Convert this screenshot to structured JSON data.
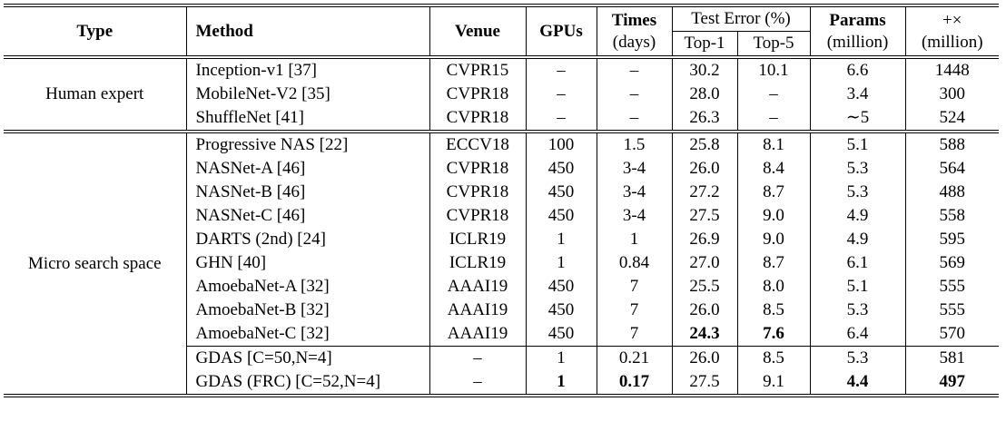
{
  "table": {
    "header": {
      "type": "Type",
      "method": "Method",
      "venue": "Venue",
      "gpus": "GPUs",
      "times": "Times",
      "times_unit": "(days)",
      "test_error": "Test Error (%)",
      "top1": "Top-1",
      "top5": "Top-5",
      "params": "Params",
      "params_unit": "(million)",
      "flops": "+×",
      "flops_unit": "(million)"
    },
    "groups": [
      {
        "type": "Human expert",
        "blocks": [
          [
            [
              "Inception-v1 [37]",
              "CVPR15",
              "–",
              "–",
              "30.2",
              "10.1",
              "6.6",
              "1448"
            ],
            [
              "MobileNet-V2 [35]",
              "CVPR18",
              "–",
              "–",
              "28.0",
              "–",
              "3.4",
              "300"
            ],
            [
              "ShuffleNet [41]",
              "CVPR18",
              "–",
              "–",
              "26.3",
              "–",
              "∼5",
              "524"
            ]
          ]
        ]
      },
      {
        "type": "Micro search space",
        "blocks": [
          [
            [
              "Progressive NAS [22]",
              "ECCV18",
              "100",
              "1.5",
              "25.8",
              "8.1",
              "5.1",
              "588"
            ],
            [
              "NASNet-A [46]",
              "CVPR18",
              "450",
              "3-4",
              "26.0",
              "8.4",
              "5.3",
              "564"
            ],
            [
              "NASNet-B [46]",
              "CVPR18",
              "450",
              "3-4",
              "27.2",
              "8.7",
              "5.3",
              "488"
            ],
            [
              "NASNet-C [46]",
              "CVPR18",
              "450",
              "3-4",
              "27.5",
              "9.0",
              "4.9",
              "558"
            ],
            [
              "DARTS (2nd) [24]",
              "ICLR19",
              "1",
              "1",
              "26.9",
              "9.0",
              "4.9",
              "595"
            ],
            [
              "GHN [40]",
              "ICLR19",
              "1",
              "0.84",
              "27.0",
              "8.7",
              "6.1",
              "569"
            ],
            [
              "AmoebaNet-A [32]",
              "AAAI19",
              "450",
              "7",
              "25.5",
              "8.0",
              "5.1",
              "555"
            ],
            [
              "AmoebaNet-B [32]",
              "AAAI19",
              "450",
              "7",
              "26.0",
              "8.5",
              "5.3",
              "555"
            ],
            [
              "AmoebaNet-C [32]",
              "AAAI19",
              "450",
              "7",
              "24.3",
              "7.6",
              "6.4",
              "570"
            ]
          ],
          [
            [
              "GDAS [C=50,N=4]",
              "–",
              "1",
              "0.21",
              "26.0",
              "8.5",
              "5.3",
              "581"
            ],
            [
              "GDAS (FRC) [C=52,N=4]",
              "–",
              "1",
              "0.17",
              "27.5",
              "9.1",
              "4.4",
              "497"
            ]
          ]
        ]
      }
    ]
  }
}
